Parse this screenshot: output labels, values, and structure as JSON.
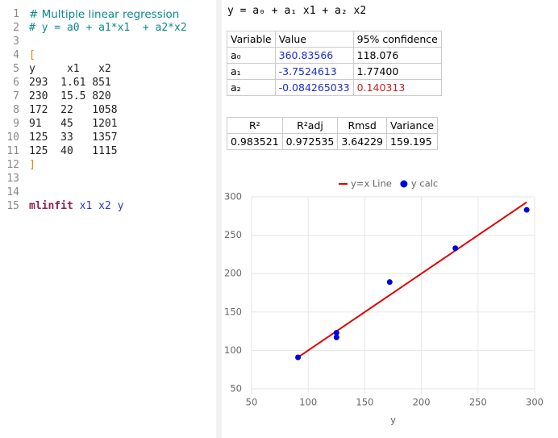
{
  "editor": {
    "lines": [
      {
        "number": 1,
        "tokens": [
          {
            "text": "# Multiple linear regression",
            "style": "comment-prose"
          }
        ]
      },
      {
        "number": 2,
        "tokens": [
          {
            "text": "# y = a0 + a1*x1  + a2*x2",
            "style": "comment"
          }
        ]
      },
      {
        "number": 3
      },
      {
        "number": 4,
        "tokens": [
          {
            "text": "[",
            "style": "bracket"
          }
        ]
      },
      {
        "number": 5,
        "tokens": [
          {
            "text": "y     x1   x2",
            "style": "plain"
          }
        ]
      },
      {
        "number": 6,
        "tokens": [
          {
            "text": "293  1.61 851",
            "style": "plain"
          }
        ]
      },
      {
        "number": 7,
        "tokens": [
          {
            "text": "230  15.5 820",
            "style": "plain"
          }
        ]
      },
      {
        "number": 8,
        "tokens": [
          {
            "text": "172  22   1058",
            "style": "plain"
          }
        ]
      },
      {
        "number": 9,
        "tokens": [
          {
            "text": "91   45   1201",
            "style": "plain"
          }
        ]
      },
      {
        "number": 10,
        "tokens": [
          {
            "text": "125  33   1357",
            "style": "plain"
          }
        ]
      },
      {
        "number": 11,
        "tokens": [
          {
            "text": "125  40   1115",
            "style": "plain"
          }
        ]
      },
      {
        "number": 12,
        "tokens": [
          {
            "text": "]",
            "style": "bracket"
          }
        ]
      },
      {
        "number": 13
      },
      {
        "number": 14
      },
      {
        "number": 15,
        "tokens": [
          {
            "text": "mlinfit",
            "style": "keyword"
          },
          {
            "text": " x1 x2 y",
            "style": "variable"
          }
        ]
      }
    ]
  },
  "results": {
    "equation": "y = a₀ + a₁ x1 + a₂ x2",
    "coefficients": {
      "header": [
        "Variable",
        "Value",
        "95% confidence"
      ],
      "rows": [
        [
          "a₀",
          "360.83566",
          "118.076"
        ],
        [
          "a₁",
          "-3.7524613",
          "1.77400"
        ],
        [
          "a₂",
          "-0.084265033",
          "0.140313"
        ]
      ]
    },
    "statistics": {
      "header": [
        "R²",
        "R²adj",
        "Rmsd",
        "Variance"
      ],
      "rows": [
        [
          "0.983521",
          "0.972535",
          "3.64229",
          "159.195"
        ]
      ]
    }
  },
  "chart_data": {
    "type": "scatter",
    "x_label": "y",
    "xlim": [
      50,
      300
    ],
    "xticks": [
      50,
      100,
      150,
      200,
      250,
      300
    ],
    "ylim": [
      50,
      300
    ],
    "yticks": [
      50,
      100,
      150,
      200,
      250,
      300
    ],
    "grid": true,
    "legend": "top",
    "series": [
      {
        "name": "y=x Line",
        "type": "line",
        "color": "#e00000",
        "x": [
          91,
          293
        ],
        "values": [
          91,
          293
        ]
      },
      {
        "name": "y calc",
        "type": "scatter",
        "color": "#0000e0",
        "x": [
          293,
          230,
          172,
          91,
          125,
          125
        ],
        "values": [
          283,
          233,
          189,
          91,
          117,
          123
        ]
      }
    ]
  }
}
